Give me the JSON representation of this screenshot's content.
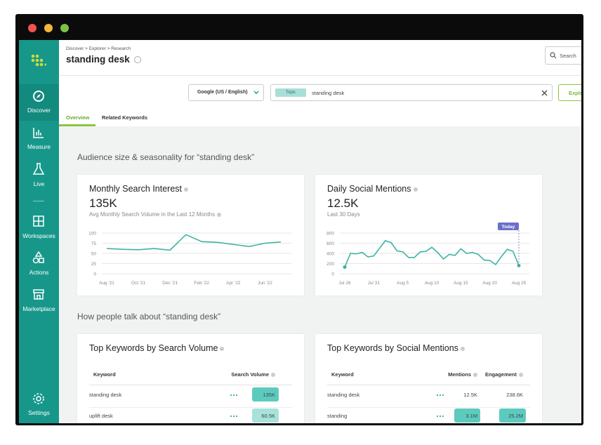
{
  "sidebar": {
    "items": [
      "Discover",
      "Measure",
      "Live",
      "Workspaces",
      "Actions",
      "Marketplace"
    ],
    "settings": "Settings"
  },
  "header": {
    "breadcrumb": "Discover > Explorer > Research",
    "title": "standing desk",
    "search": "Search"
  },
  "toolbar": {
    "region": "Google (US / English)",
    "chip": "Topic",
    "query": "standing desk",
    "button": "Explo"
  },
  "tabs": [
    "Overview",
    "Related Keywords"
  ],
  "sections": [
    "Audience size & seasonality for “standing desk”",
    "How people talk about “standing desk”"
  ],
  "chart_data": [
    {
      "type": "line",
      "title": "Monthly Search Interest",
      "headline": "135K",
      "subtitle": "Avg Monthly Search Volume in the Last 12 Months",
      "categories": [
        "Aug '21",
        null,
        "Oct '21",
        null,
        "Dec '21",
        null,
        "Feb '22",
        null,
        "Apr '22",
        null,
        "Jun '22",
        null
      ],
      "values": [
        62,
        60,
        59,
        62,
        58,
        96,
        79,
        77,
        72,
        67,
        75,
        78
      ],
      "color": "#3fb3a3",
      "ylim": [
        0,
        100
      ],
      "yticks": [
        0,
        25,
        50,
        75,
        100
      ],
      "grid": true
    },
    {
      "type": "line",
      "title": "Daily Social Mentions",
      "headline": "12.5K",
      "subtitle": "Last 30 Days",
      "categories": [
        "Jul 26",
        null,
        null,
        null,
        null,
        "Jul 31",
        null,
        null,
        null,
        null,
        "Aug 5",
        null,
        null,
        null,
        null,
        "Aug 10",
        null,
        null,
        null,
        null,
        "Aug 15",
        null,
        null,
        null,
        null,
        "Aug 20",
        null,
        null,
        null,
        null,
        "Aug 25"
      ],
      "values": [
        130,
        400,
        390,
        420,
        330,
        350,
        500,
        650,
        610,
        450,
        430,
        320,
        320,
        430,
        440,
        520,
        420,
        290,
        380,
        360,
        490,
        400,
        420,
        380,
        270,
        260,
        180,
        340,
        480,
        440,
        160
      ],
      "color": "#3fb3a3",
      "ylim": [
        0,
        800
      ],
      "yticks": [
        0,
        200,
        400,
        600,
        800
      ],
      "grid": true,
      "annotation": "Today"
    }
  ],
  "tables": [
    {
      "title": "Top Keywords by Search Volume",
      "columns": [
        "Keyword",
        "Search Volume"
      ],
      "rows": [
        [
          "standing desk",
          "135K"
        ],
        [
          "uplift desk",
          "60.5K"
        ]
      ]
    },
    {
      "title": "Top Keywords by Social Mentions",
      "columns": [
        "Keyword",
        "Mentions",
        "Engagement"
      ],
      "rows": [
        [
          "standing desk",
          "12.5K",
          "238.6K"
        ],
        [
          "standing",
          "3.1M",
          "25.2M"
        ]
      ]
    }
  ]
}
